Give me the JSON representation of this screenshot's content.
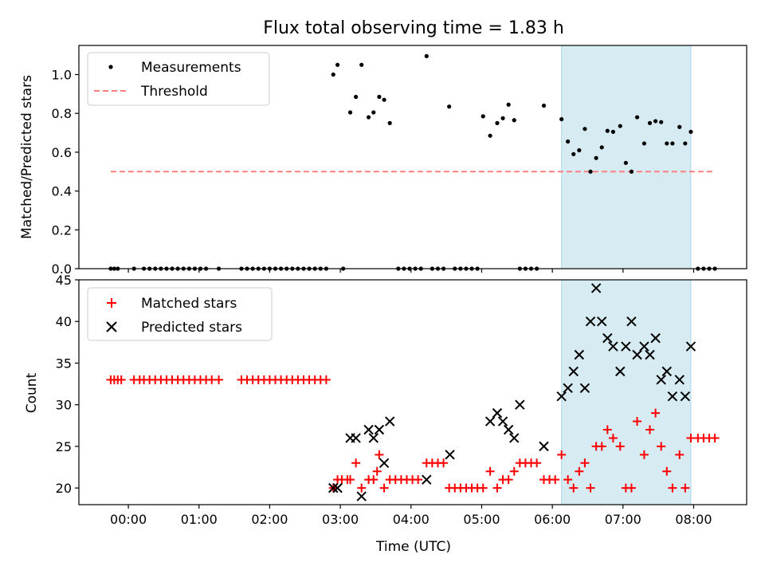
{
  "figure_title": "Flux total observing time = 1.83 h",
  "chart_data": [
    {
      "type": "scatter",
      "ylabel": "Matched/Predicted stars",
      "ylim": [
        0,
        1.15
      ],
      "yticks": [
        0.0,
        0.2,
        0.4,
        0.6,
        0.8,
        1.0
      ],
      "ytick_labels": [
        "0.0",
        "0.2",
        "0.4",
        "0.6",
        "0.8",
        "1.0"
      ],
      "shaded_span_hours": [
        6.13,
        7.96
      ],
      "shade_color": "#add8e6",
      "legend": {
        "placement": "upper left"
      },
      "series": [
        {
          "name": "Measurements",
          "marker": "dot",
          "color": "#000000",
          "x": [
            -0.25,
            -0.2,
            -0.15,
            0.08,
            0.22,
            0.3,
            0.38,
            0.46,
            0.54,
            0.62,
            0.7,
            0.78,
            0.86,
            0.94,
            1.02,
            1.1,
            1.28,
            1.6,
            1.68,
            1.76,
            1.84,
            1.92,
            2.0,
            2.08,
            2.16,
            2.24,
            2.32,
            2.4,
            2.48,
            2.56,
            2.64,
            2.72,
            2.8,
            2.9,
            2.96,
            3.04,
            3.14,
            3.22,
            3.3,
            3.4,
            3.47,
            3.55,
            3.62,
            3.7,
            3.82,
            3.9,
            3.98,
            4.06,
            4.14,
            4.22,
            4.3,
            4.38,
            4.46,
            4.54,
            4.62,
            4.7,
            4.78,
            4.86,
            4.94,
            5.02,
            5.12,
            5.22,
            5.3,
            5.38,
            5.46,
            5.54,
            5.62,
            5.7,
            5.78,
            5.88,
            6.13,
            6.22,
            6.3,
            6.38,
            6.46,
            6.54,
            6.62,
            6.7,
            6.78,
            6.86,
            6.96,
            7.04,
            7.12,
            7.2,
            7.3,
            7.38,
            7.46,
            7.54,
            7.62,
            7.7,
            7.8,
            7.88,
            7.96,
            8.06,
            8.14,
            8.22,
            8.3
          ],
          "y": [
            0,
            0,
            0,
            0,
            0,
            0,
            0,
            0,
            0,
            0,
            0,
            0,
            0,
            0,
            0,
            0,
            0,
            0,
            0,
            0,
            0,
            0,
            0,
            0,
            0,
            0,
            0,
            0,
            0,
            0,
            0,
            0,
            0,
            1.0,
            1.05,
            0,
            0.805,
            0.885,
            1.05,
            0.78,
            0.805,
            0.885,
            0.87,
            0.75,
            0,
            0,
            0,
            0,
            0,
            1.095,
            0,
            0,
            0,
            0.835,
            0,
            0,
            0,
            0,
            0,
            0.785,
            0.685,
            0.75,
            0.775,
            0.845,
            0.765,
            0,
            0,
            0,
            0,
            0.84,
            0.77,
            0.655,
            0.59,
            0.61,
            0.72,
            0.5,
            0.57,
            0.625,
            0.71,
            0.705,
            0.735,
            0.545,
            0.5,
            0.78,
            0.645,
            0.75,
            0.76,
            0.755,
            0.645,
            0.645,
            0.73,
            0.645,
            0.705,
            0,
            0,
            0,
            0
          ]
        },
        {
          "name": "Threshold",
          "marker": "dashed-line",
          "color": "#ff7f7f",
          "x": [
            -0.25,
            8.3
          ],
          "y": [
            0.5,
            0.5
          ]
        }
      ]
    },
    {
      "type": "scatter",
      "xlabel": "Time (UTC)",
      "ylabel": "Count",
      "xlim": [
        -0.7,
        8.75
      ],
      "ylim": [
        18,
        45
      ],
      "xticks": [
        0,
        1,
        2,
        3,
        4,
        5,
        6,
        7,
        8
      ],
      "xtick_labels": [
        "00:00",
        "01:00",
        "02:00",
        "03:00",
        "04:00",
        "05:00",
        "06:00",
        "07:00",
        "08:00"
      ],
      "yticks": [
        20,
        25,
        30,
        35,
        40,
        45
      ],
      "ytick_labels": [
        "20",
        "25",
        "30",
        "35",
        "40",
        "45"
      ],
      "shaded_span_hours": [
        6.13,
        7.96
      ],
      "shade_color": "#add8e6",
      "legend": {
        "placement": "upper left"
      },
      "series": [
        {
          "name": "Matched stars",
          "marker": "plus",
          "color": "#ff0000",
          "x": [
            -0.25,
            -0.2,
            -0.15,
            -0.1,
            0.08,
            0.16,
            0.22,
            0.3,
            0.38,
            0.46,
            0.54,
            0.62,
            0.7,
            0.78,
            0.86,
            0.94,
            1.02,
            1.1,
            1.18,
            1.28,
            1.6,
            1.68,
            1.76,
            1.84,
            1.92,
            2.0,
            2.08,
            2.16,
            2.24,
            2.32,
            2.4,
            2.48,
            2.56,
            2.64,
            2.72,
            2.8,
            2.9,
            2.96,
            3.02,
            3.1,
            3.14,
            3.22,
            3.3,
            3.4,
            3.47,
            3.52,
            3.55,
            3.62,
            3.7,
            3.78,
            3.86,
            3.94,
            4.02,
            4.1,
            4.22,
            4.3,
            4.38,
            4.46,
            4.54,
            4.62,
            4.7,
            4.78,
            4.86,
            4.94,
            5.02,
            5.12,
            5.22,
            5.3,
            5.38,
            5.46,
            5.54,
            5.62,
            5.7,
            5.78,
            5.88,
            5.96,
            6.04,
            6.13,
            6.22,
            6.3,
            6.38,
            6.46,
            6.54,
            6.62,
            6.7,
            6.78,
            6.86,
            6.96,
            7.04,
            7.12,
            7.2,
            7.3,
            7.38,
            7.46,
            7.54,
            7.62,
            7.7,
            7.8,
            7.88,
            7.96,
            8.06,
            8.14,
            8.22,
            8.3
          ],
          "y": [
            33,
            33,
            33,
            33,
            33,
            33,
            33,
            33,
            33,
            33,
            33,
            33,
            33,
            33,
            33,
            33,
            33,
            33,
            33,
            33,
            33,
            33,
            33,
            33,
            33,
            33,
            33,
            33,
            33,
            33,
            33,
            33,
            33,
            33,
            33,
            33,
            20,
            21,
            21,
            21,
            21,
            23,
            20,
            21,
            21,
            22,
            24,
            20,
            21,
            21,
            21,
            21,
            21,
            21,
            23,
            23,
            23,
            23,
            20,
            20,
            20,
            20,
            20,
            20,
            20,
            22,
            20,
            21,
            21,
            22,
            23,
            23,
            23,
            23,
            21,
            21,
            21,
            24,
            21,
            20,
            22,
            23,
            20,
            25,
            25,
            27,
            26,
            25,
            20,
            20,
            28,
            24,
            27,
            29,
            25,
            22,
            20,
            24,
            20,
            26,
            26,
            26,
            26,
            26
          ]
        },
        {
          "name": "Predicted stars",
          "marker": "x",
          "color": "#000000",
          "x": [
            2.9,
            2.96,
            3.14,
            3.22,
            3.3,
            3.4,
            3.47,
            3.55,
            3.62,
            3.7,
            4.22,
            4.55,
            5.12,
            5.22,
            5.3,
            5.38,
            5.46,
            5.54,
            5.88,
            6.13,
            6.22,
            6.3,
            6.38,
            6.46,
            6.54,
            6.62,
            6.7,
            6.78,
            6.86,
            6.96,
            7.04,
            7.12,
            7.2,
            7.3,
            7.38,
            7.46,
            7.54,
            7.62,
            7.7,
            7.8,
            7.88,
            7.96
          ],
          "y": [
            20,
            20,
            26,
            26,
            19,
            27,
            26,
            27,
            23,
            28,
            21,
            24,
            28,
            29,
            28,
            27,
            26,
            30,
            25,
            31,
            32,
            34,
            36,
            32,
            40,
            44,
            40,
            38,
            37,
            34,
            37,
            40,
            36,
            37,
            36,
            38,
            33,
            34,
            31,
            33,
            31,
            37
          ]
        }
      ]
    }
  ]
}
